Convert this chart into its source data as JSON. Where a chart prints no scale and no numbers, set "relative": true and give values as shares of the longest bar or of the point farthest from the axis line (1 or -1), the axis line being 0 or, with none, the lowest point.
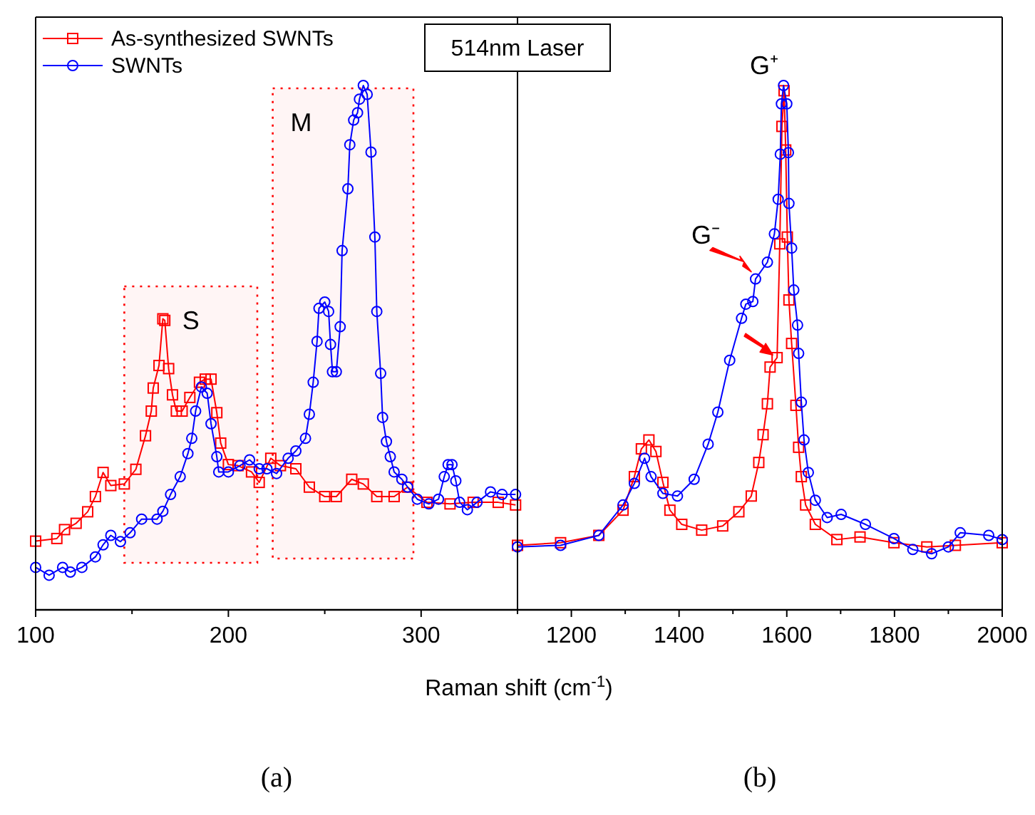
{
  "chart_data": [
    {
      "type": "line",
      "relative": true,
      "xlabel": "Raman shift (cm$^{-1}$)",
      "legend": "top left",
      "xlim": [
        100,
        350
      ],
      "xticks": [
        100,
        {
          "value": 150,
          "label": null
        },
        200,
        {
          "value": 250,
          "label": null
        },
        300
      ],
      "annotations": [
        "514nm Laser",
        "(a)"
      ],
      "bands": [
        {
          "axis": "x",
          "from": 146,
          "to": 215,
          "label": "S",
          "color": "#ff0000"
        },
        {
          "axis": "x",
          "from": 223,
          "to": 296,
          "label": "M",
          "color": "#ff0000"
        }
      ],
      "series": [
        {
          "name": "As-synthesized SWNTs",
          "color": "#ff0000",
          "marker": "square",
          "x": [
            100,
            111,
            115,
            121,
            127,
            131,
            135,
            139,
            146,
            152,
            157,
            160,
            161,
            164,
            166,
            167,
            169,
            171,
            173,
            176,
            180,
            185,
            188,
            191,
            194,
            196,
            200,
            205,
            212,
            216,
            222,
            227,
            235,
            242,
            250,
            256,
            264,
            270,
            277,
            286,
            293,
            303,
            315,
            327,
            340,
            349
          ],
          "values": [
            0.131,
            0.136,
            0.153,
            0.165,
            0.187,
            0.216,
            0.262,
            0.237,
            0.24,
            0.268,
            0.332,
            0.379,
            0.423,
            0.466,
            0.555,
            0.552,
            0.46,
            0.41,
            0.379,
            0.379,
            0.405,
            0.434,
            0.44,
            0.44,
            0.376,
            0.318,
            0.277,
            0.275,
            0.263,
            0.243,
            0.289,
            0.275,
            0.269,
            0.234,
            0.216,
            0.216,
            0.249,
            0.24,
            0.216,
            0.216,
            0.234,
            0.205,
            0.202,
            0.205,
            0.205,
            0.2
          ]
        },
        {
          "name": "SWNTs",
          "color": "#0000ff",
          "marker": "circle",
          "x": [
            100,
            107,
            114,
            118,
            124,
            131,
            135,
            139,
            144,
            149,
            155,
            163,
            166,
            170,
            175,
            179,
            181,
            183,
            186,
            189,
            191,
            194,
            195,
            200,
            206,
            211,
            216,
            220,
            225,
            231,
            235,
            240,
            242,
            244,
            246,
            247,
            250,
            252,
            253,
            254,
            256,
            258,
            259,
            262,
            263,
            265,
            267,
            268,
            270,
            272,
            274,
            276,
            277,
            279,
            280,
            282,
            284,
            286,
            290,
            293,
            298,
            304,
            309,
            312,
            314,
            316,
            318,
            320,
            324,
            329,
            336,
            342,
            349
          ],
          "values": [
            0.081,
            0.066,
            0.081,
            0.072,
            0.081,
            0.101,
            0.124,
            0.142,
            0.13,
            0.147,
            0.173,
            0.173,
            0.188,
            0.22,
            0.254,
            0.298,
            0.327,
            0.379,
            0.425,
            0.413,
            0.355,
            0.292,
            0.263,
            0.263,
            0.275,
            0.286,
            0.269,
            0.269,
            0.26,
            0.289,
            0.303,
            0.327,
            0.373,
            0.434,
            0.512,
            0.575,
            0.587,
            0.569,
            0.506,
            0.454,
            0.454,
            0.54,
            0.685,
            0.803,
            0.887,
            0.934,
            0.948,
            0.974,
            1.0,
            0.983,
            0.873,
            0.711,
            0.569,
            0.451,
            0.367,
            0.321,
            0.292,
            0.263,
            0.249,
            0.234,
            0.211,
            0.202,
            0.211,
            0.254,
            0.277,
            0.277,
            0.246,
            0.205,
            0.191,
            0.205,
            0.225,
            0.22,
            0.22
          ]
        }
      ]
    },
    {
      "type": "line",
      "relative": true,
      "xlim": [
        1100,
        2000
      ],
      "xticks": [
        {
          "value": 1100,
          "label": null
        },
        1200,
        {
          "value": 1300,
          "label": null
        },
        1400,
        {
          "value": 1500,
          "label": null
        },
        1600,
        {
          "value": 1700,
          "label": null
        },
        1800,
        {
          "value": 1900,
          "label": null
        },
        2000
      ],
      "annotations": [
        "(b)",
        {
          "text": "G⁺",
          "x": 1595,
          "y": 1.0
        },
        {
          "text": "G⁻",
          "x": 1542,
          "y": 0.631
        }
      ],
      "series": [
        {
          "color": "#ff0000",
          "marker": "square",
          "x": [
            1100,
            1180,
            1251,
            1296,
            1317,
            1330,
            1344,
            1357,
            1370,
            1383,
            1405,
            1442,
            1481,
            1511,
            1534,
            1548,
            1556,
            1564,
            1569,
            1582,
            1587,
            1591,
            1595,
            1598,
            1601,
            1604,
            1609,
            1617,
            1622,
            1627,
            1635,
            1653,
            1693,
            1736,
            1799,
            1860,
            1913,
            2000
          ],
          "values": [
            0.123,
            0.128,
            0.142,
            0.19,
            0.254,
            0.307,
            0.324,
            0.302,
            0.243,
            0.19,
            0.163,
            0.152,
            0.16,
            0.187,
            0.217,
            0.281,
            0.334,
            0.393,
            0.463,
            0.481,
            0.698,
            0.922,
            0.99,
            0.877,
            0.711,
            0.591,
            0.508,
            0.39,
            0.31,
            0.254,
            0.2,
            0.163,
            0.134,
            0.139,
            0.128,
            0.12,
            0.123,
            0.128
          ]
        },
        {
          "color": "#0000ff",
          "marker": "circle",
          "x": [
            1100,
            1180,
            1251,
            1296,
            1317,
            1336,
            1348,
            1370,
            1397,
            1428,
            1454,
            1472,
            1494,
            1516,
            1524,
            1537,
            1542,
            1564,
            1577,
            1584,
            1588,
            1590,
            1594,
            1600,
            1603,
            1604,
            1609,
            1613,
            1620,
            1622,
            1627,
            1632,
            1640,
            1653,
            1675,
            1701,
            1746,
            1799,
            1834,
            1869,
            1900,
            1922,
            1975,
            2000
          ],
          "values": [
            0.12,
            0.123,
            0.142,
            0.2,
            0.241,
            0.289,
            0.254,
            0.222,
            0.217,
            0.249,
            0.316,
            0.377,
            0.476,
            0.556,
            0.583,
            0.588,
            0.631,
            0.663,
            0.717,
            0.783,
            0.869,
            0.965,
            1.0,
            0.965,
            0.872,
            0.775,
            0.69,
            0.61,
            0.543,
            0.489,
            0.396,
            0.324,
            0.262,
            0.209,
            0.176,
            0.182,
            0.163,
            0.136,
            0.115,
            0.107,
            0.12,
            0.147,
            0.142,
            0.134
          ]
        }
      ]
    }
  ]
}
